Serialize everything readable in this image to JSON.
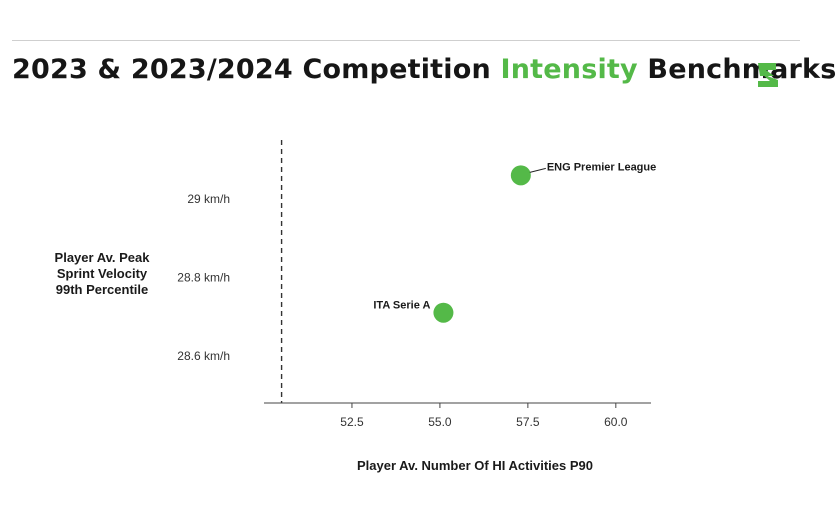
{
  "header": {
    "title_part1": "2023 & 2023/2024 Competition ",
    "title_accent": "Intensity",
    "title_part2": " Benchmarks",
    "logo": "s-bolt-logo",
    "accent_color": "#54b948"
  },
  "chart_data": {
    "type": "scatter",
    "title": "2023 & 2023/2024 Competition Intensity Benchmarks",
    "xlabel": "Player Av. Number Of HI Activities P90",
    "ylabel_lines": [
      "Player Av. Peak",
      "Sprint Velocity",
      "99th Percentile"
    ],
    "xlim": [
      50.0,
      61.0
    ],
    "ylim": [
      28.48,
      29.15
    ],
    "x_ticks": [
      52.5,
      55.0,
      57.5,
      60.0
    ],
    "x_tick_labels": [
      "52.5",
      "55.0",
      "57.5",
      "60.0"
    ],
    "y_ticks": [
      28.6,
      28.8,
      29.0
    ],
    "y_tick_labels": [
      "28.6 km/h",
      "28.8 km/h",
      "29 km/h"
    ],
    "reference_line_x": 50.5,
    "grid": false,
    "marker_color": "#54b948",
    "points": [
      {
        "label": "ENG Premier League",
        "x": 57.3,
        "y": 29.06
      },
      {
        "label": "ITA Serie A",
        "x": 55.1,
        "y": 28.71
      }
    ]
  }
}
